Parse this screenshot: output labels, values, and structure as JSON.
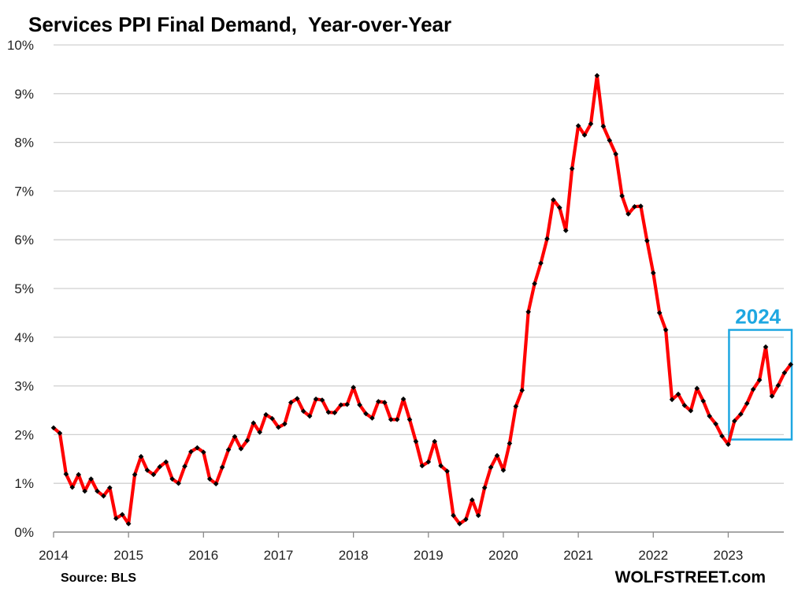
{
  "chart_data": {
    "type": "line",
    "title": "Services PPI Final Demand,  Year-over-Year",
    "source": "Source: BLS",
    "brand": "WOLFSTREET.com",
    "xlabel": "",
    "ylabel": "",
    "x_ticks": [
      "2014",
      "2015",
      "2016",
      "2017",
      "2018",
      "2019",
      "2020",
      "2021",
      "2022",
      "2023"
    ],
    "y_ticks": [
      "0%",
      "1%",
      "2%",
      "3%",
      "4%",
      "5%",
      "6%",
      "7%",
      "8%",
      "9%",
      "10%"
    ],
    "ylim": [
      0,
      10
    ],
    "grid": "horizontal",
    "line_color": "#ff0000",
    "marker_color": "#000000",
    "highlight": {
      "label": "2024",
      "color": "#1ea7e1",
      "x_from": "2023-01",
      "x_to": "2023-11",
      "y_range": [
        1.9,
        4.15
      ]
    },
    "series": [
      {
        "start": "2014-01",
        "frequency": "monthly",
        "values": [
          2.14,
          2.03,
          1.19,
          0.92,
          1.18,
          0.84,
          1.09,
          0.84,
          0.74,
          0.91,
          0.28,
          0.36,
          0.17,
          1.18,
          1.55,
          1.27,
          1.18,
          1.34,
          1.44,
          1.09,
          1.0,
          1.35,
          1.65,
          1.73,
          1.64,
          1.09,
          0.99,
          1.33,
          1.69,
          1.96,
          1.71,
          1.88,
          2.24,
          2.05,
          2.41,
          2.33,
          2.15,
          2.22,
          2.66,
          2.74,
          2.48,
          2.38,
          2.73,
          2.71,
          2.46,
          2.45,
          2.61,
          2.62,
          2.97,
          2.61,
          2.43,
          2.34,
          2.68,
          2.66,
          2.31,
          2.31,
          2.73,
          2.31,
          1.86,
          1.36,
          1.44,
          1.86,
          1.36,
          1.25,
          0.34,
          0.17,
          0.26,
          0.66,
          0.34,
          0.91,
          1.33,
          1.57,
          1.27,
          1.82,
          2.58,
          2.91,
          4.52,
          5.1,
          5.52,
          6.02,
          6.82,
          6.66,
          6.19,
          7.46,
          8.34,
          8.15,
          8.38,
          9.37,
          8.33,
          8.04,
          7.76,
          6.9,
          6.53,
          6.68,
          6.69,
          5.98,
          5.32,
          4.5,
          4.15,
          2.72,
          2.83,
          2.6,
          2.49,
          2.95,
          2.69,
          2.38,
          2.22,
          1.97,
          1.8,
          2.28,
          2.42,
          2.64,
          2.93,
          3.12,
          3.8,
          2.79,
          3.01,
          3.27,
          3.44
        ]
      }
    ]
  }
}
